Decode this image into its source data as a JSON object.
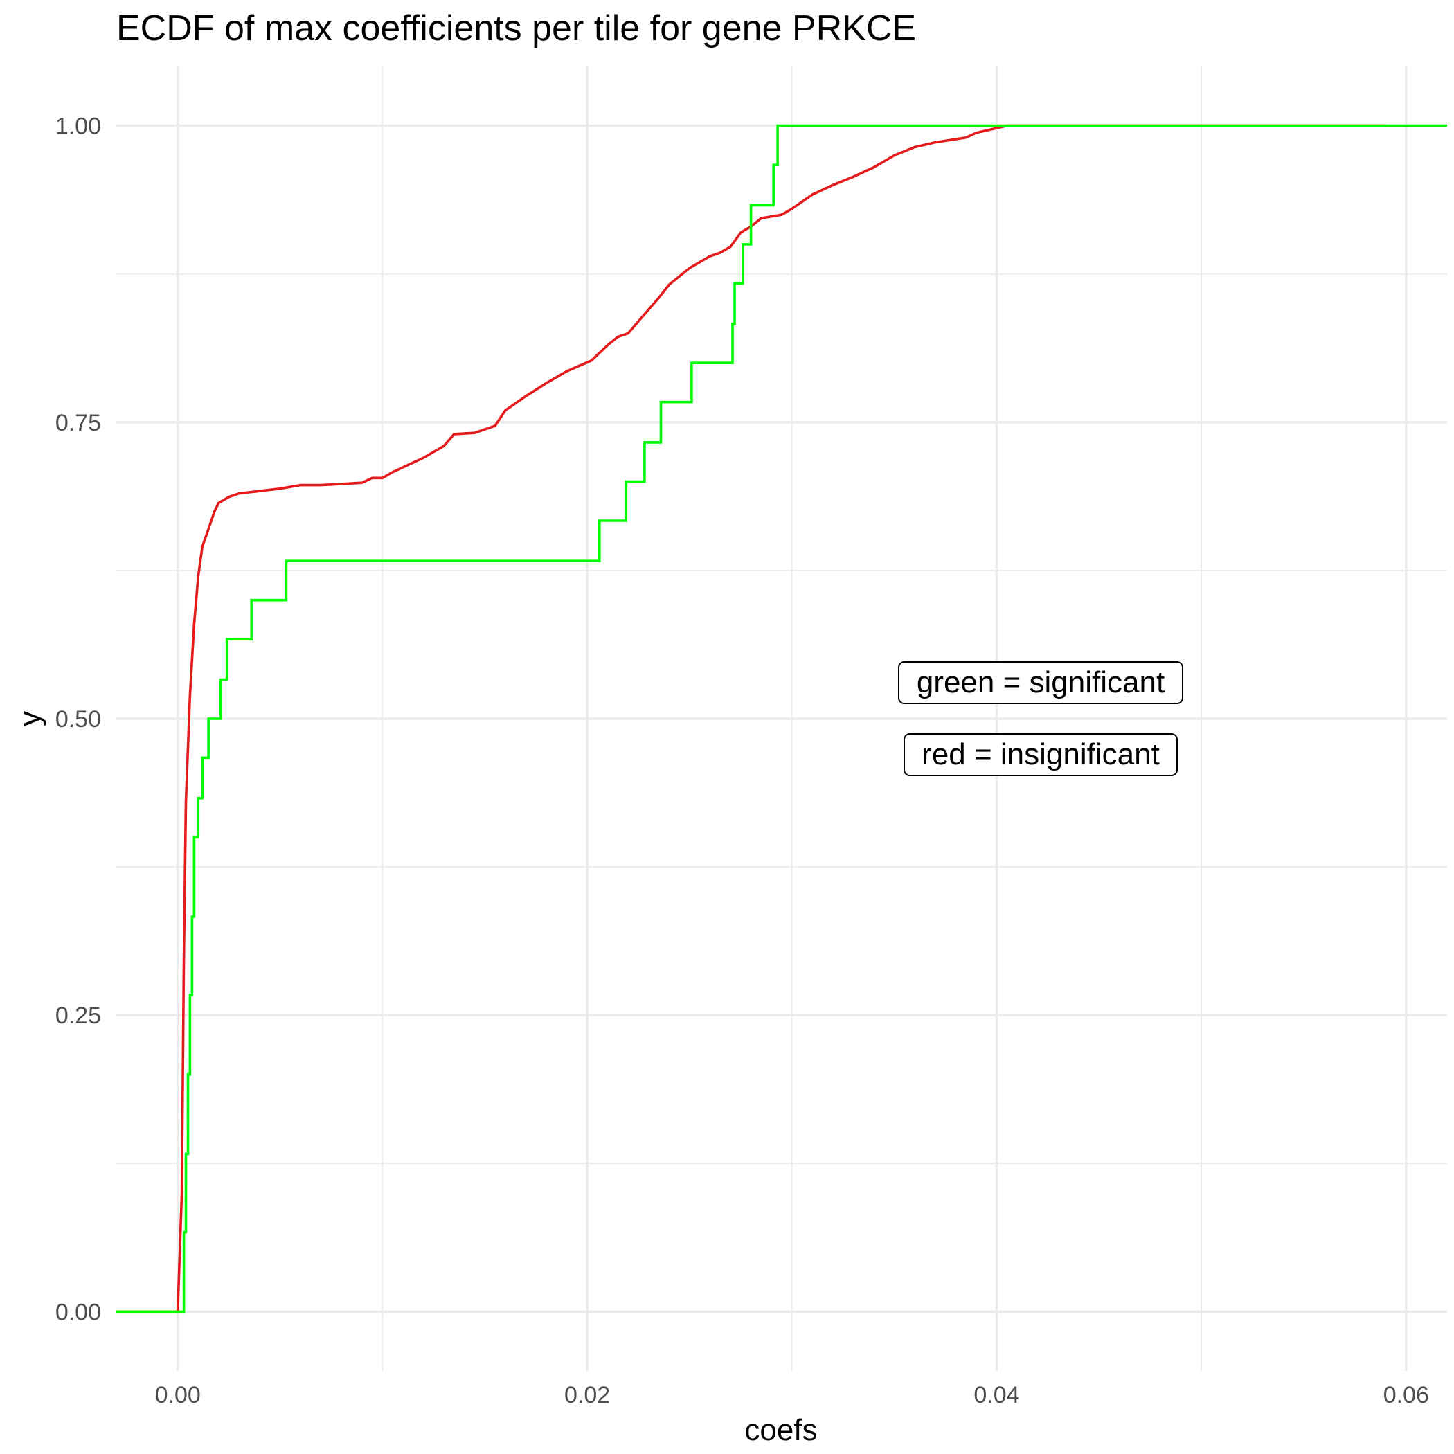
{
  "chart_data": {
    "type": "line",
    "title": "ECDF of max coefficients per tile for gene PRKCE",
    "xlabel": "coefs",
    "ylabel": "y",
    "xlim": [
      -0.003,
      0.062
    ],
    "ylim": [
      -0.05,
      1.05
    ],
    "x_ticks": [
      0.0,
      0.02,
      0.04,
      0.06
    ],
    "x_tick_labels": [
      "0.00",
      "0.02",
      "0.04",
      "0.06"
    ],
    "y_ticks": [
      0.0,
      0.25,
      0.5,
      0.75,
      1.0
    ],
    "y_tick_labels": [
      "0.00",
      "0.25",
      "0.50",
      "0.75",
      "1.00"
    ],
    "grid": true,
    "series": [
      {
        "color": "#e41a1c",
        "step": false,
        "points": [
          [
            -0.003,
            0.0
          ],
          [
            0.0,
            0.0
          ],
          [
            0.0002,
            0.1
          ],
          [
            0.0003,
            0.3
          ],
          [
            0.0004,
            0.43
          ],
          [
            0.0006,
            0.52
          ],
          [
            0.0008,
            0.58
          ],
          [
            0.001,
            0.62
          ],
          [
            0.0012,
            0.645
          ],
          [
            0.0015,
            0.66
          ],
          [
            0.0018,
            0.675
          ],
          [
            0.002,
            0.682
          ],
          [
            0.0025,
            0.687
          ],
          [
            0.003,
            0.69
          ],
          [
            0.004,
            0.692
          ],
          [
            0.005,
            0.694
          ],
          [
            0.006,
            0.697
          ],
          [
            0.007,
            0.697
          ],
          [
            0.008,
            0.698
          ],
          [
            0.009,
            0.699
          ],
          [
            0.0095,
            0.703
          ],
          [
            0.01,
            0.703
          ],
          [
            0.0105,
            0.708
          ],
          [
            0.011,
            0.712
          ],
          [
            0.012,
            0.72
          ],
          [
            0.013,
            0.73
          ],
          [
            0.0135,
            0.74
          ],
          [
            0.0145,
            0.741
          ],
          [
            0.0155,
            0.747
          ],
          [
            0.016,
            0.76
          ],
          [
            0.017,
            0.772
          ],
          [
            0.018,
            0.783
          ],
          [
            0.019,
            0.793
          ],
          [
            0.0202,
            0.802
          ],
          [
            0.021,
            0.815
          ],
          [
            0.0215,
            0.822
          ],
          [
            0.022,
            0.825
          ],
          [
            0.0225,
            0.835
          ],
          [
            0.0235,
            0.855
          ],
          [
            0.024,
            0.866
          ],
          [
            0.025,
            0.88
          ],
          [
            0.026,
            0.89
          ],
          [
            0.0265,
            0.893
          ],
          [
            0.027,
            0.898
          ],
          [
            0.0275,
            0.91
          ],
          [
            0.028,
            0.915
          ],
          [
            0.0285,
            0.922
          ],
          [
            0.0295,
            0.925
          ],
          [
            0.03,
            0.93
          ],
          [
            0.031,
            0.942
          ],
          [
            0.032,
            0.95
          ],
          [
            0.033,
            0.957
          ],
          [
            0.034,
            0.965
          ],
          [
            0.035,
            0.975
          ],
          [
            0.036,
            0.982
          ],
          [
            0.037,
            0.986
          ],
          [
            0.0385,
            0.99
          ],
          [
            0.039,
            0.994
          ],
          [
            0.0405,
            1.0
          ],
          [
            0.059,
            1.0
          ]
        ]
      },
      {
        "color": "#00ff00",
        "step": true,
        "points": [
          [
            -0.003,
            0.0
          ],
          [
            0.0002,
            0.0
          ],
          [
            0.0003,
            0.067
          ],
          [
            0.0004,
            0.133
          ],
          [
            0.0005,
            0.2
          ],
          [
            0.0006,
            0.267
          ],
          [
            0.0007,
            0.333
          ],
          [
            0.0008,
            0.4
          ],
          [
            0.001,
            0.433
          ],
          [
            0.0012,
            0.467
          ],
          [
            0.0015,
            0.5
          ],
          [
            0.0021,
            0.533
          ],
          [
            0.0024,
            0.567
          ],
          [
            0.0036,
            0.6
          ],
          [
            0.0053,
            0.633
          ],
          [
            0.0206,
            0.667
          ],
          [
            0.0219,
            0.7
          ],
          [
            0.0228,
            0.733
          ],
          [
            0.0236,
            0.767
          ],
          [
            0.0251,
            0.8
          ],
          [
            0.0271,
            0.833
          ],
          [
            0.0272,
            0.867
          ],
          [
            0.0276,
            0.9
          ],
          [
            0.028,
            0.933
          ],
          [
            0.0291,
            0.967
          ],
          [
            0.0293,
            1.0
          ],
          [
            0.062,
            1.0
          ]
        ]
      }
    ],
    "annotations": [
      "green = significant",
      "red = insignificant"
    ]
  }
}
